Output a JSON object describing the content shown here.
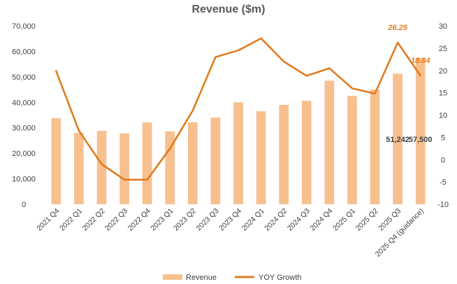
{
  "chart_data": {
    "type": "bar",
    "title": "Revenue ($m)",
    "categories": [
      "2021 Q4",
      "2022 Q1",
      "2022 Q2",
      "2022 Q3",
      "2022 Q4",
      "2023 Q1",
      "2023 Q2",
      "2023 Q3",
      "2023 Q4",
      "2024 Q1",
      "2024 Q2",
      "2024 Q3",
      "2024 Q4",
      "2025 Q1",
      "2025 Q2",
      "2025 Q3",
      "2025 Q4 (guidance)"
    ],
    "series": [
      {
        "name": "Revenue",
        "type": "bar",
        "axis": "left",
        "color": "#F8C08F",
        "values": [
          33800,
          28000,
          28800,
          27800,
          32100,
          28600,
          32200,
          34000,
          40000,
          36500,
          39000,
          40600,
          48500,
          42500,
          45000,
          51242,
          57500
        ]
      },
      {
        "name": "YOY Growth",
        "type": "line",
        "axis": "right",
        "color": "#E07C1F",
        "values": [
          19.9,
          6.5,
          -1.0,
          -4.5,
          -4.5,
          2.5,
          11.0,
          23.0,
          24.5,
          27.2,
          22.0,
          18.8,
          20.5,
          16.0,
          14.8,
          26.25,
          18.84
        ]
      }
    ],
    "y_left": {
      "min": 0,
      "max": 70000,
      "ticks": [
        "0",
        "10,000",
        "20,000",
        "30,000",
        "40,000",
        "50,000",
        "60,000",
        "70,000"
      ]
    },
    "y_right": {
      "min": -10,
      "max": 30,
      "ticks": [
        "-10",
        "-5",
        "0",
        "5",
        "10",
        "15",
        "20",
        "25",
        "30"
      ]
    },
    "bar_labels": [
      {
        "index": 15,
        "text": "51,242"
      },
      {
        "index": 16,
        "text": "57,500"
      }
    ],
    "growth_labels": [
      {
        "index": 15,
        "text": "26.25"
      },
      {
        "index": 16,
        "text": "18.84"
      }
    ],
    "legend": {
      "position": "bottom",
      "items": [
        "Revenue",
        "YOY Growth"
      ]
    },
    "grid": false
  }
}
